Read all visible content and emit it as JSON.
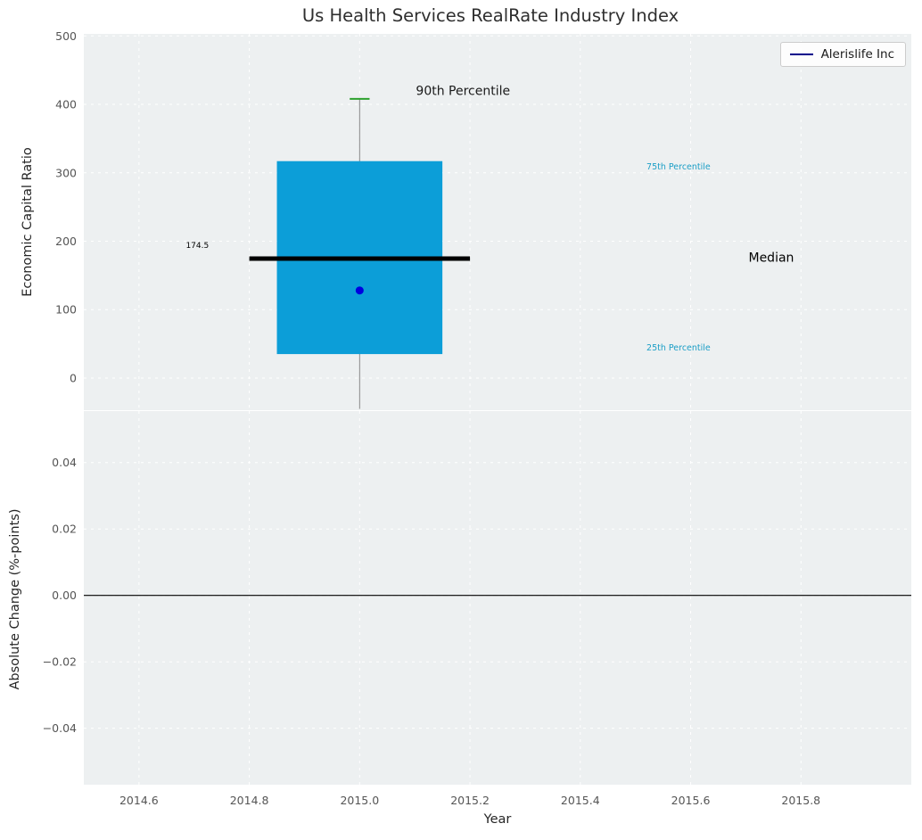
{
  "figure": {
    "title": "Us Health Services RealRate Industry Index",
    "legend_label": "Alerislife Inc"
  },
  "colors": {
    "plot_bg": "#edf0f1",
    "grid": "#ffffff",
    "box_fill": "#0c9ed8",
    "percentile_label": "#1b9ec6",
    "median_line": "#000000",
    "whisker": "#888888",
    "p90_cap": "#2ca02c",
    "company_marker": "#0000e0",
    "legend_line": "#00008b",
    "zero_line": "#000000",
    "tick_text": "#555555",
    "title_text": "#2f2f2f"
  },
  "chart_data": [
    {
      "type": "boxplot",
      "subplot": "top",
      "title": "Us Health Services RealRate Industry Index",
      "ylabel": "Economic Capital Ratio",
      "xlim": [
        2014.5,
        2016.0
      ],
      "ylim": [
        -47,
        503
      ],
      "yticks": [
        0,
        100,
        200,
        300,
        400,
        500
      ],
      "ytick_labels": [
        "0",
        "100",
        "200",
        "300",
        "400",
        "500"
      ],
      "xticks": [
        2014.6,
        2014.8,
        2015.0,
        2015.2,
        2015.4,
        2015.6,
        2015.8
      ],
      "grid": true,
      "legend_position": "upper right",
      "box": {
        "x_center": 2015.0,
        "x_left": 2014.85,
        "x_right": 2015.15,
        "q1": 35,
        "q3": 317,
        "median": 174.5,
        "median_label": "174.5",
        "median_x_left": 2014.8,
        "median_x_right": 2015.2,
        "whisker_low": -45,
        "p90": 408,
        "p90_cap_halfwidth": 0.018,
        "company": {
          "name": "Alerislife Inc",
          "value": 128
        }
      },
      "annotations": [
        {
          "text": "90th Percentile",
          "x": 2015.102,
          "y": 414,
          "color": "#1a1a1a",
          "size": 14
        },
        {
          "text": "75th Percentile",
          "x": 2015.52,
          "y": 305,
          "color": "#1b9ec6",
          "size": 9.5
        },
        {
          "text": "25th Percentile",
          "x": 2015.52,
          "y": 40,
          "color": "#1b9ec6",
          "size": 9.5
        },
        {
          "text": "Median",
          "x": 2015.705,
          "y": 170,
          "color": "#000000",
          "size": 14
        },
        {
          "text": "174.5",
          "x": 2014.685,
          "y": 190,
          "color": "#000000",
          "size": 9
        }
      ]
    },
    {
      "type": "line",
      "subplot": "bottom",
      "xlabel": "Year",
      "ylabel": "Absolute Change (%-points)",
      "xlim": [
        2014.5,
        2016.0
      ],
      "ylim": [
        -0.057,
        0.0555
      ],
      "yticks": [
        -0.04,
        -0.02,
        0,
        0.02,
        0.04
      ],
      "ytick_labels": [
        "−0.04",
        "−0.02",
        "0.00",
        "0.02",
        "0.04"
      ],
      "xticks": [
        2014.6,
        2014.8,
        2015.0,
        2015.2,
        2015.4,
        2015.6,
        2015.8
      ],
      "xtick_labels": [
        "2014.6",
        "2014.8",
        "2015.0",
        "2015.2",
        "2015.4",
        "2015.6",
        "2015.8"
      ],
      "grid": true,
      "zero_line_y": 0.0
    }
  ]
}
